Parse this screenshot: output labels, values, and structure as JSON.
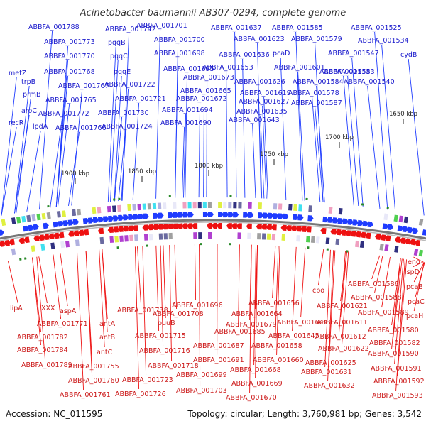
{
  "title": "Acinetobacter baumannii AB307-0294, complete genome",
  "footer": {
    "accession": "Accession: NC_011595",
    "summary": "Topology: circular; Length: 3,760,981 bp; Genes: 3,542"
  },
  "ticks": [
    "1650 kbp",
    "1700 kbp",
    "1750 kbp",
    "1800 kbp",
    "1850 kbp",
    "1900 kbp"
  ],
  "top_labels": [
    "ABBFA_001788",
    "ABBFA_001742",
    "ABBFA_001701",
    "ABBFA_001637",
    "ABBFA_001585",
    "ABBFA_001525",
    "ABBFA_001773",
    "pqqB",
    "ABBFA_001700",
    "ABBFA_001623",
    "ABBFA_001579",
    "ABBFA_001534",
    "ABBFA_001770",
    "pqqC",
    "ABBFA_001698",
    "ABBFA_001636",
    "pcaD",
    "ABBFA_001547",
    "cydB",
    "metZ",
    "ABBFA_001768",
    "pqqE",
    "ABBFA_001695",
    "ABBFA_001653",
    "ABBFA_001601",
    "ABBFA_001553",
    "trpB",
    "ABBFA_001767",
    "ABBFA_001722",
    "ABBFA_001673",
    "ABBFA_001626",
    "ABBFA_001584",
    "ABBFA_001558",
    "prmB",
    "ABBFA_001765",
    "ABBFA_001721",
    "ABBFA_001665",
    "ABBFA_001619",
    "ABBFA_001578",
    "ABBFA_001540",
    "aroC",
    "ABBFA_001772",
    "ABBFA_001730",
    "ABBFA_001672",
    "ABBFA_001627",
    "ABBFA_001587",
    "recR",
    "lpdA",
    "ABBFA_001766",
    "ABBFA_001724",
    "ABBFA_001694",
    "ABBFA_001635",
    "ABBFA_001690",
    "ABBFA_001643"
  ],
  "bottom_labels": [
    "eno",
    "ispD",
    "ABBFA_001586",
    "pcaB",
    "ABBFA_001588",
    "pcaC",
    "ABBFA_001589",
    "pcaH",
    "ABBFA_001580",
    "ABBFA_001582",
    "ABBFA_001590",
    "ABBFA_001591",
    "ABBFA_001592",
    "ABBFA_001593",
    "lipA",
    "XXX",
    "aspA",
    "ABBFA_001738",
    "ABBFA_001696",
    "ABBFA_001656",
    "cpo",
    "ABBFA_001621",
    "ABBFA_001771",
    "antA",
    "ABBFA_001708",
    "ABBFA_001664",
    "ABBFA_001644",
    "ABBFA_001782",
    "puuB",
    "ABBFA_001679",
    "ABBFA_001611",
    "ABBFA_001685",
    "ABBFA_001612",
    "antB",
    "ABBFA_001715",
    "ABBFA_001645",
    "ABBFA_001784",
    "ABBFA_001687",
    "ABBFA_001658",
    "ABBFA_001622",
    "antC",
    "ABBFA_001716",
    "ABBFA_001789",
    "ABBFA_001755",
    "ABBFA_001718",
    "ABBFA_001691",
    "ABBFA_001660",
    "ABBFA_001625",
    "ABBFA_001668",
    "ABBFA_001631",
    "ABBFA_001699",
    "ABBFA_001760",
    "ABBFA_001723",
    "ABBFA_001669",
    "ABBFA_001632",
    "ABBFA_001761",
    "ABBFA_001726",
    "ABBFA_001703",
    "ABBFA_001670"
  ],
  "colors": {
    "forward_strand": "#1f3cff",
    "reverse_strand": "#ee1111",
    "label_top": "#1a1acc",
    "label_bottom": "#cc1a1a",
    "backbone": "#777777"
  }
}
